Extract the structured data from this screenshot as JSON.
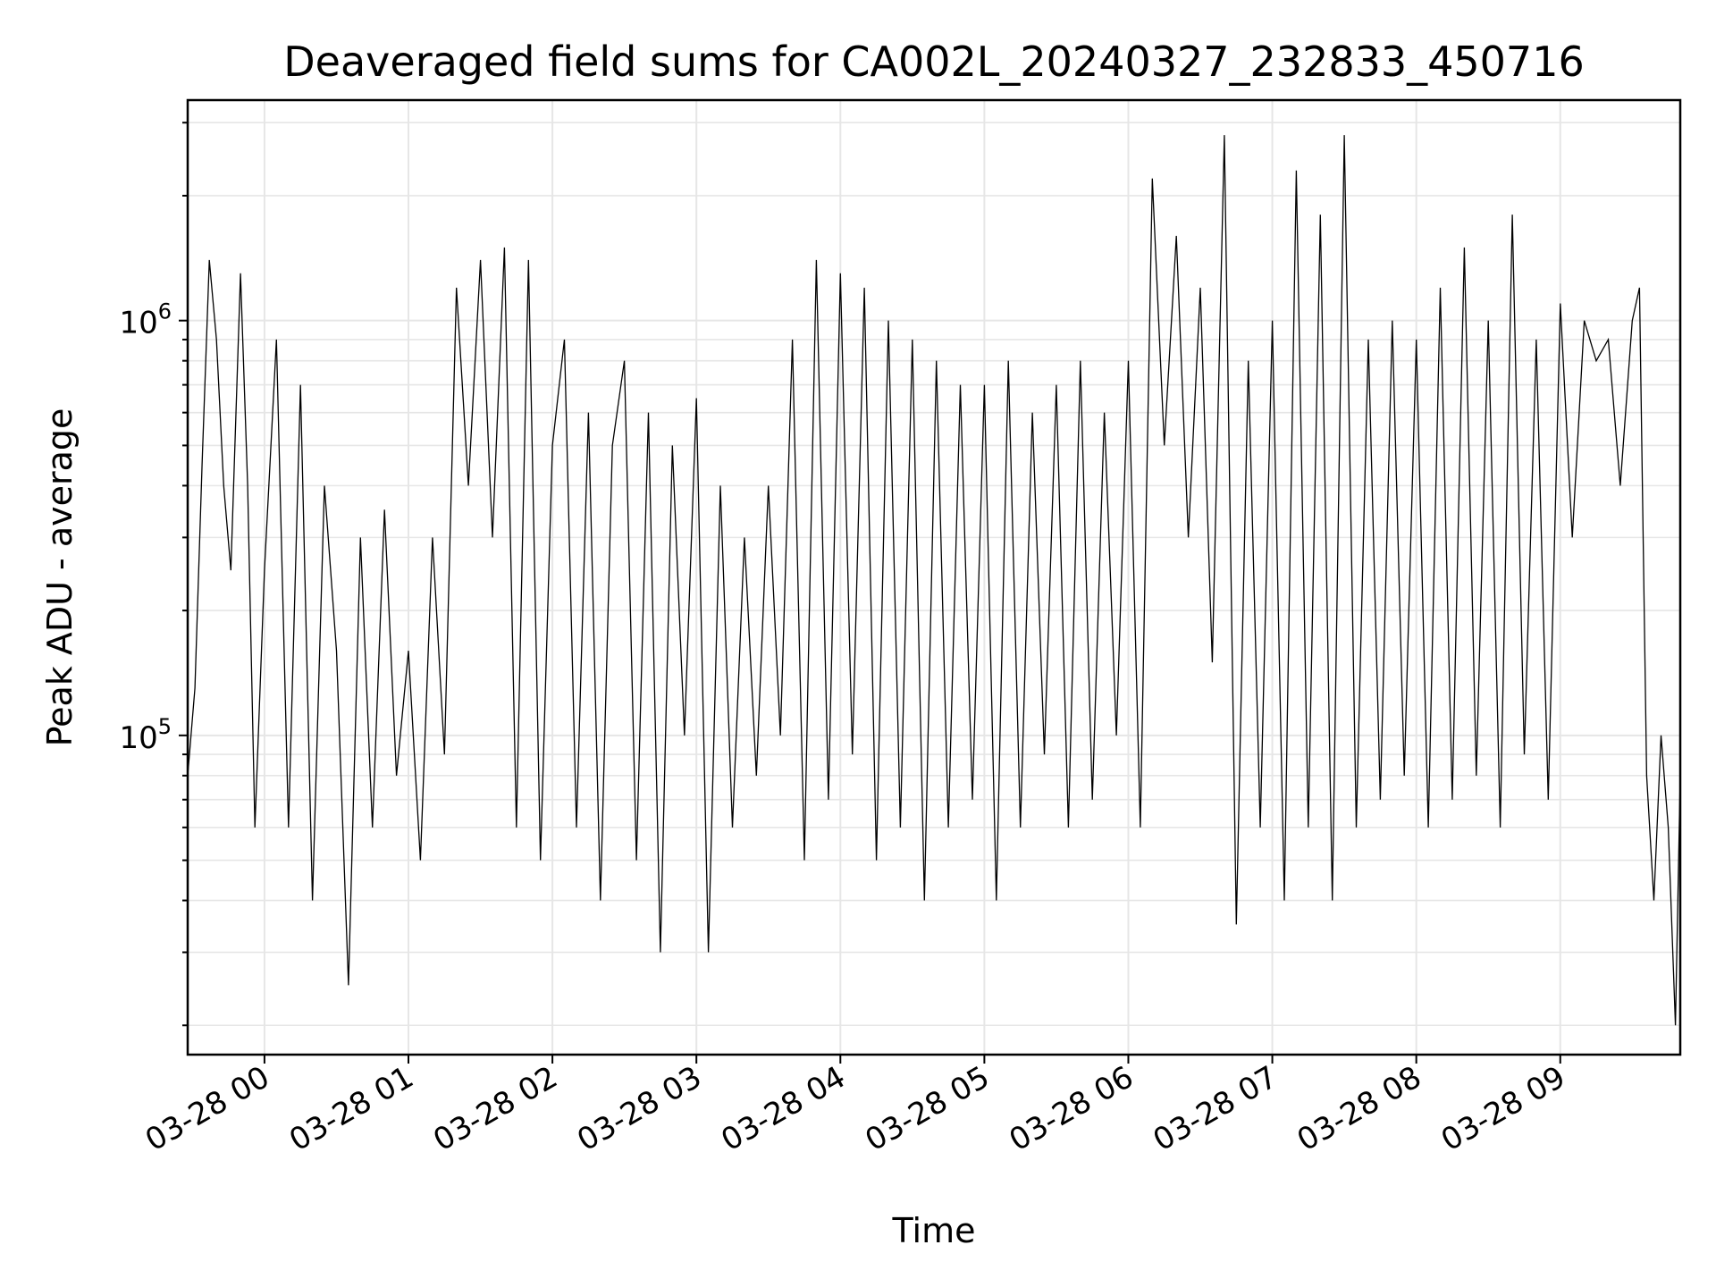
{
  "chart_data": {
    "type": "line",
    "title": "Deaveraged field sums for CA002L_20240327_232833_450716",
    "xlabel": "Time",
    "ylabel": "Peak ADU - average",
    "y_scale": "log",
    "ylim": [
      17000,
      3400000
    ],
    "xlim": [
      "03-27 23:28",
      "03-28 09:50"
    ],
    "y_ticks": [
      {
        "value": 100000,
        "base": "10",
        "exp": "5"
      },
      {
        "value": 1000000,
        "base": "10",
        "exp": "6"
      }
    ],
    "x_ticks": [
      {
        "time": "03-28 00:00",
        "label": "03-28 00"
      },
      {
        "time": "03-28 01:00",
        "label": "03-28 01"
      },
      {
        "time": "03-28 02:00",
        "label": "03-28 02"
      },
      {
        "time": "03-28 03:00",
        "label": "03-28 03"
      },
      {
        "time": "03-28 04:00",
        "label": "03-28 04"
      },
      {
        "time": "03-28 05:00",
        "label": "03-28 05"
      },
      {
        "time": "03-28 06:00",
        "label": "03-28 06"
      },
      {
        "time": "03-28 07:00",
        "label": "03-28 07"
      },
      {
        "time": "03-28 08:00",
        "label": "03-28 08"
      },
      {
        "time": "03-28 09:00",
        "label": "03-28 09"
      }
    ],
    "grid": true,
    "line_color": "#000000",
    "grid_color": "#e6e6e6",
    "series": [
      {
        "x": [
          "03-27 23:28",
          "03-27 23:31",
          "03-27 23:34",
          "03-27 23:37",
          "03-27 23:40",
          "03-27 23:43",
          "03-27 23:46",
          "03-27 23:50",
          "03-27 23:53",
          "03-27 23:56",
          "03-28 00:00",
          "03-28 00:05",
          "03-28 00:10",
          "03-28 00:15",
          "03-28 00:20",
          "03-28 00:25",
          "03-28 00:30",
          "03-28 00:35",
          "03-28 00:40",
          "03-28 00:45",
          "03-28 00:50",
          "03-28 00:55",
          "03-28 01:00",
          "03-28 01:05",
          "03-28 01:10",
          "03-28 01:15",
          "03-28 01:20",
          "03-28 01:25",
          "03-28 01:30",
          "03-28 01:35",
          "03-28 01:40",
          "03-28 01:45",
          "03-28 01:50",
          "03-28 01:55",
          "03-28 02:00",
          "03-28 02:05",
          "03-28 02:10",
          "03-28 02:15",
          "03-28 02:20",
          "03-28 02:25",
          "03-28 02:30",
          "03-28 02:35",
          "03-28 02:40",
          "03-28 02:45",
          "03-28 02:50",
          "03-28 02:55",
          "03-28 03:00",
          "03-28 03:05",
          "03-28 03:10",
          "03-28 03:15",
          "03-28 03:20",
          "03-28 03:25",
          "03-28 03:30",
          "03-28 03:35",
          "03-28 03:40",
          "03-28 03:45",
          "03-28 03:50",
          "03-28 03:55",
          "03-28 04:00",
          "03-28 04:05",
          "03-28 04:10",
          "03-28 04:15",
          "03-28 04:20",
          "03-28 04:25",
          "03-28 04:30",
          "03-28 04:35",
          "03-28 04:40",
          "03-28 04:45",
          "03-28 04:50",
          "03-28 04:55",
          "03-28 05:00",
          "03-28 05:05",
          "03-28 05:10",
          "03-28 05:15",
          "03-28 05:20",
          "03-28 05:25",
          "03-28 05:30",
          "03-28 05:35",
          "03-28 05:40",
          "03-28 05:45",
          "03-28 05:50",
          "03-28 05:55",
          "03-28 06:00",
          "03-28 06:05",
          "03-28 06:10",
          "03-28 06:15",
          "03-28 06:20",
          "03-28 06:25",
          "03-28 06:30",
          "03-28 06:35",
          "03-28 06:40",
          "03-28 06:45",
          "03-28 06:50",
          "03-28 06:55",
          "03-28 07:00",
          "03-28 07:05",
          "03-28 07:10",
          "03-28 07:15",
          "03-28 07:20",
          "03-28 07:25",
          "03-28 07:30",
          "03-28 07:35",
          "03-28 07:40",
          "03-28 07:45",
          "03-28 07:50",
          "03-28 07:55",
          "03-28 08:00",
          "03-28 08:05",
          "03-28 08:10",
          "03-28 08:15",
          "03-28 08:20",
          "03-28 08:25",
          "03-28 08:30",
          "03-28 08:35",
          "03-28 08:40",
          "03-28 08:45",
          "03-28 08:50",
          "03-28 08:55",
          "03-28 09:00",
          "03-28 09:05",
          "03-28 09:10",
          "03-28 09:15",
          "03-28 09:20",
          "03-28 09:25",
          "03-28 09:30",
          "03-28 09:33",
          "03-28 09:36",
          "03-28 09:39",
          "03-28 09:42",
          "03-28 09:45",
          "03-28 09:48",
          "03-28 09:50"
        ],
        "values": [
          80000,
          130000,
          450000,
          1400000,
          900000,
          400000,
          250000,
          1300000,
          400000,
          60000,
          250000,
          900000,
          60000,
          700000,
          40000,
          400000,
          160000,
          25000,
          300000,
          60000,
          350000,
          80000,
          160000,
          50000,
          300000,
          90000,
          1200000,
          400000,
          1400000,
          300000,
          1500000,
          60000,
          1400000,
          50000,
          500000,
          900000,
          60000,
          600000,
          40000,
          500000,
          800000,
          50000,
          600000,
          30000,
          500000,
          100000,
          650000,
          30000,
          400000,
          60000,
          300000,
          80000,
          400000,
          100000,
          900000,
          50000,
          1400000,
          70000,
          1300000,
          90000,
          1200000,
          50000,
          1000000,
          60000,
          900000,
          40000,
          800000,
          60000,
          700000,
          70000,
          700000,
          40000,
          800000,
          60000,
          600000,
          90000,
          700000,
          60000,
          800000,
          70000,
          600000,
          100000,
          800000,
          60000,
          2200000,
          500000,
          1600000,
          300000,
          1200000,
          150000,
          2800000,
          35000,
          800000,
          60000,
          1000000,
          40000,
          2300000,
          60000,
          1800000,
          40000,
          2800000,
          60000,
          900000,
          70000,
          1000000,
          80000,
          900000,
          60000,
          1200000,
          70000,
          1500000,
          80000,
          1000000,
          60000,
          1800000,
          90000,
          900000,
          70000,
          1100000,
          300000,
          1000000,
          800000,
          900000,
          400000,
          1000000,
          1200000,
          80000,
          40000,
          100000,
          60000,
          20000,
          80000
        ]
      }
    ]
  }
}
